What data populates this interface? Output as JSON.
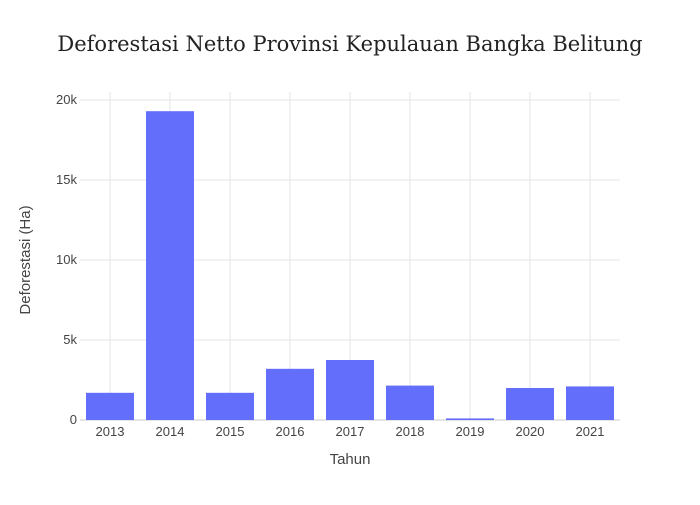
{
  "chart_data": {
    "type": "bar",
    "title": "Deforestasi Netto Provinsi Kepulauan Bangka Belitung",
    "xlabel": "Tahun",
    "ylabel": "Deforestasi (Ha)",
    "categories": [
      "2013",
      "2014",
      "2015",
      "2016",
      "2017",
      "2018",
      "2019",
      "2020",
      "2021"
    ],
    "values": [
      1700,
      19300,
      1700,
      3200,
      3750,
      2150,
      100,
      2000,
      2100
    ],
    "ylim": [
      0,
      20500
    ],
    "yticks": [
      0,
      5000,
      10000,
      15000,
      20000
    ],
    "ytick_labels": [
      "0",
      "5k",
      "10k",
      "15k",
      "20k"
    ],
    "grid": true,
    "legend": "none",
    "bar_color": "#636efa"
  }
}
